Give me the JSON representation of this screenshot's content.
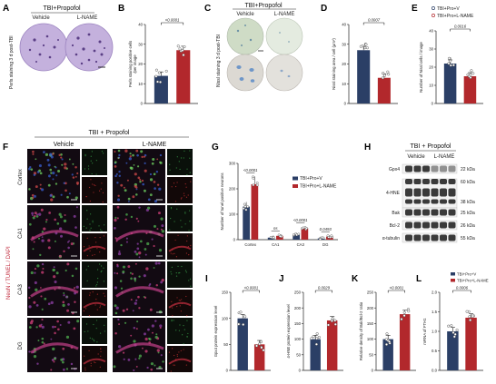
{
  "panel_labels": [
    "A",
    "B",
    "C",
    "D",
    "E",
    "F",
    "G",
    "H",
    "I",
    "J",
    "K",
    "L"
  ],
  "colors": {
    "vehicle": "#2b3f66",
    "lname": "#b2282c",
    "stain_purple": "#b09ad0",
    "stain_green": "#d6e3cc",
    "fluor_bg": "#120a12"
  },
  "panel_a": {
    "group": "TBI+Propofol",
    "side_label": "Perls staining 3 d post-TBI",
    "col1": "Vehicle",
    "col2": "L-NAME"
  },
  "panel_c": {
    "group": "TBI+Propofol",
    "side_label": "Nissl staining 3 d post-TBI",
    "col1": "Vehicle",
    "col2": "L-NAME"
  },
  "panel_f": {
    "group": "TBI + Propofol",
    "col1": "Vehicle",
    "col2": "L-NAME",
    "side_label": "NeuN / TUNEL / DAPI",
    "rows": [
      "Cortex",
      "CA1",
      "CA3",
      "DG"
    ]
  },
  "panel_h": {
    "group": "TBI + Propofol",
    "col1": "Vehicle",
    "col2": "L-NAME",
    "blots": [
      {
        "name": "Gpx4",
        "kda": "22 kDa"
      },
      {
        "name": "",
        "kda": "60 kDa"
      },
      {
        "name": "4-HNE",
        "kda": ""
      },
      {
        "name": "",
        "kda": "38 kDa"
      },
      {
        "name": "Bak",
        "kda": "25 kDa"
      },
      {
        "name": "Bcl-2",
        "kda": "26 kDa"
      },
      {
        "name": "α-tubulin",
        "kda": "55 kDa"
      }
    ]
  },
  "legend_e": [
    "TBI+Pro+V",
    "TBI+Pro+L-NAME"
  ],
  "legend_g": [
    "TBI+Pro+V",
    "TBI+Pro+L-NAME"
  ],
  "legend_l": [
    "TBI+Pro+V",
    "TBI+Pro+L-NAME"
  ],
  "chart_data": [
    {
      "panel": "B",
      "type": "bar",
      "categories": [
        "TBI+Pro+V",
        "TBI+Pro+L-NAME"
      ],
      "values": [
        14,
        27
      ],
      "ylim": [
        0,
        40
      ],
      "yticks": [
        0,
        10,
        20,
        30,
        40
      ],
      "ylabel": "Perls staining positive cells\n/per image",
      "pvalue": "<0.0001"
    },
    {
      "panel": "D",
      "type": "bar",
      "categories": [
        "TBI+Pro+V",
        "TBI+Pro+L-NAME"
      ],
      "values": [
        27,
        13
      ],
      "ylim": [
        0,
        40
      ],
      "yticks": [
        0,
        10,
        20,
        30,
        40
      ],
      "ylabel": "Nissl staining area / cell (μm²)",
      "pvalue": "0.0007"
    },
    {
      "panel": "E",
      "type": "bar",
      "categories": [
        "TBI+Pro+V",
        "TBI+Pro+L-NAME"
      ],
      "values": [
        22,
        15
      ],
      "ylim": [
        0,
        40
      ],
      "yticks": [
        0,
        10,
        20,
        30,
        40
      ],
      "ylabel": "Number of Nissl cells / image",
      "pvalue": "0.0016"
    },
    {
      "panel": "G",
      "type": "bar",
      "categories": [
        "Cortex",
        "CA1",
        "CA3",
        "DG"
      ],
      "series": [
        {
          "name": "TBI+Pro+V",
          "values": [
            130,
            8,
            20,
            5
          ]
        },
        {
          "name": "TBI+Pro+L-NAME",
          "values": [
            218,
            15,
            45,
            12
          ]
        }
      ],
      "ylim": [
        0,
        300
      ],
      "yticks": [
        0,
        100,
        200,
        300
      ],
      "ylabel": "Number of tunel positive neurons",
      "pvalues": [
        "<0.0001",
        "ns",
        "<0.0001",
        "0.0493"
      ]
    },
    {
      "panel": "I",
      "type": "bar",
      "categories": [
        "TBI+Pro+V",
        "TBI+Pro+L-NAME"
      ],
      "values": [
        100,
        50
      ],
      "ylim": [
        0,
        150
      ],
      "yticks": [
        0,
        50,
        100,
        150
      ],
      "ylabel": "Gpx4 protein expression level",
      "pvalue": "<0.0001"
    },
    {
      "panel": "J",
      "type": "bar",
      "categories": [
        "TBI+Pro+V",
        "TBI+Pro+L-NAME"
      ],
      "values": [
        100,
        160
      ],
      "ylim": [
        0,
        250
      ],
      "yticks": [
        0,
        50,
        100,
        150,
        200,
        250
      ],
      "ylabel": "4-HNE protein expression level",
      "pvalue": "0.0029"
    },
    {
      "panel": "K",
      "type": "bar",
      "categories": [
        "TBI+Pro+V",
        "TBI+Pro+L-NAME"
      ],
      "values": [
        100,
        180
      ],
      "ylim": [
        0,
        250
      ],
      "yticks": [
        0,
        50,
        100,
        150,
        200,
        250
      ],
      "ylabel": "Relative density of Bak/Bcl-2 ratio",
      "pvalue": "<0.0001"
    },
    {
      "panel": "L",
      "type": "bar",
      "categories": [
        "TBI+Pro+V",
        "TBI+Pro+L-NAME"
      ],
      "values": [
        1.0,
        1.35
      ],
      "ylim": [
        0,
        2.0
      ],
      "yticks": [
        0.0,
        0.5,
        1.0,
        1.5,
        2.0
      ],
      "ylabel": "mRNA of FTH1",
      "pvalue": "0.0006"
    }
  ]
}
